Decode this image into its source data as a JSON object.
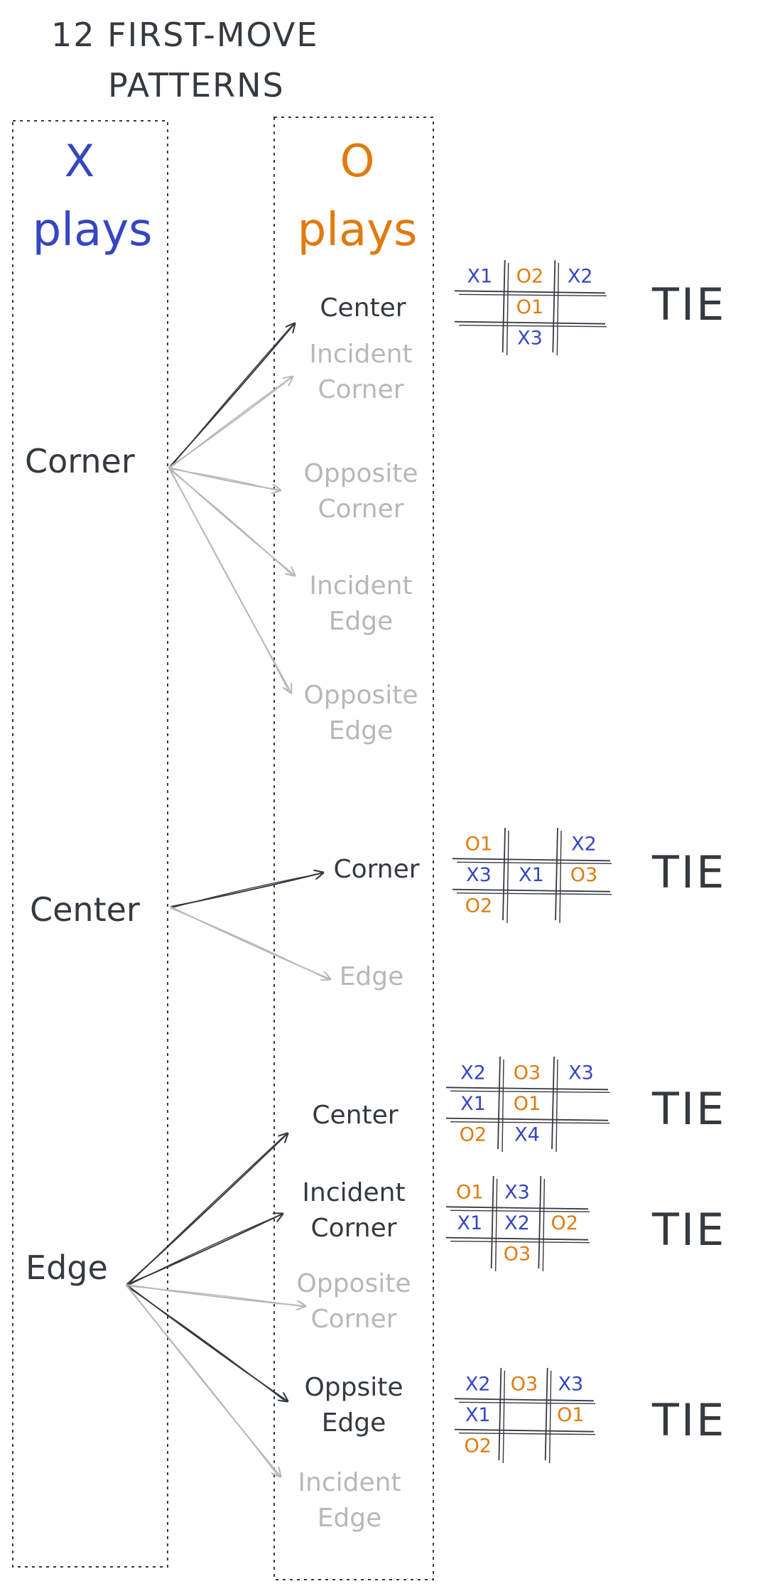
{
  "title": [
    "12 FIRST-MOVE",
    "PATTERNS"
  ],
  "columns": {
    "x_header": [
      "X",
      "plays"
    ],
    "o_header": [
      "O",
      "plays"
    ]
  },
  "colors": {
    "ink": "#343a40",
    "x_blue": "#3546c2",
    "o_orange": "#e07b0f",
    "muted": "#b8b8b8"
  },
  "x_moves": [
    "Corner",
    "Center",
    "Edge"
  ],
  "groups": [
    {
      "x_move": "Corner",
      "responses": [
        {
          "label": [
            "Center"
          ],
          "active": true
        },
        {
          "label": [
            "Incident",
            "Corner"
          ],
          "active": false
        },
        {
          "label": [
            "Opposite",
            "Corner"
          ],
          "active": false
        },
        {
          "label": [
            "Incident",
            "Edge"
          ],
          "active": false
        },
        {
          "label": [
            "Opposite",
            "Edge"
          ],
          "active": false
        }
      ]
    },
    {
      "x_move": "Center",
      "responses": [
        {
          "label": [
            "Corner"
          ],
          "active": true
        },
        {
          "label": [
            "Edge"
          ],
          "active": false
        }
      ]
    },
    {
      "x_move": "Edge",
      "responses": [
        {
          "label": [
            "Center"
          ],
          "active": true
        },
        {
          "label": [
            "Incident",
            "Corner"
          ],
          "active": true
        },
        {
          "label": [
            "Opposite",
            "Corner"
          ],
          "active": false
        },
        {
          "label": [
            "Oppsite",
            "Edge"
          ],
          "active": true
        },
        {
          "label": [
            "Incident",
            "Edge"
          ],
          "active": false
        }
      ]
    }
  ],
  "boards": [
    {
      "cells": [
        "X1",
        "O2",
        "X2",
        "",
        "O1",
        "",
        "",
        "X3",
        ""
      ],
      "result": "TIE"
    },
    {
      "cells": [
        "O1",
        "",
        "X2",
        "X3",
        "X1",
        "O3",
        "O2",
        "",
        ""
      ],
      "result": "TIE"
    },
    {
      "cells": [
        "X2",
        "O3",
        "X3",
        "X1",
        "O1",
        "",
        "O2",
        "X4",
        ""
      ],
      "result": "TIE"
    },
    {
      "cells": [
        "O1",
        "X3",
        "",
        "X1",
        "X2",
        "O2",
        "",
        "O3",
        ""
      ],
      "result": "TIE"
    },
    {
      "cells": [
        "X2",
        "O3",
        "X3",
        "X1",
        "",
        "O1",
        "O2",
        "",
        ""
      ],
      "result": "TIE"
    }
  ]
}
